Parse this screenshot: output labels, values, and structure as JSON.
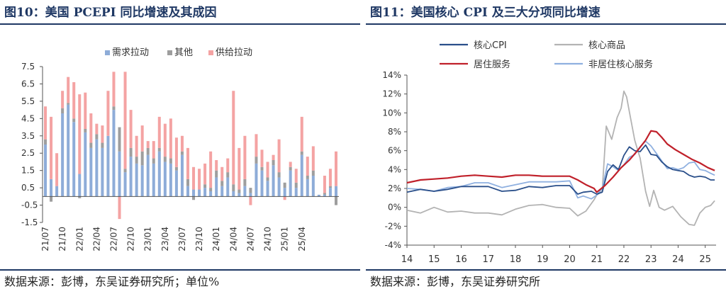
{
  "charts": [
    {
      "title": "图10：美国 PCEPI 同比增速及其成因",
      "source": "数据来源：彭博，东吴证券研究所；单位%"
    },
    {
      "title": "图11：美国核心 CPI 及三大分项同比增速",
      "source": "数据来源：彭博，东吴证券研究所"
    }
  ],
  "colors": {
    "demand": "#8eacd8",
    "other": "#9e9e9e",
    "supply": "#f4a3a3",
    "core_cpi": "#2a4f8a",
    "core_goods": "#b3b3b3",
    "shelter": "#c0202a",
    "core_services_ex_shelter": "#8fb0e0"
  },
  "chart_data": [
    {
      "type": "bar",
      "stacked": true,
      "title": "图10：美国 PCEPI 同比增速及其成因",
      "ylim": [
        -1.5,
        7.5
      ],
      "yticks": [
        "7.5",
        "6.5",
        "5.5",
        "4.5",
        "3.5",
        "2.5",
        "1.5",
        "0.5",
        "-0.5",
        "-1.5"
      ],
      "ytick_values": [
        7.5,
        6.5,
        5.5,
        4.5,
        3.5,
        2.5,
        1.5,
        0.5,
        -0.5,
        -1.5
      ],
      "xtick_labels": [
        "21/07",
        "21/10",
        "22/01",
        "22/04",
        "22/07",
        "22/10",
        "23/01",
        "23/04",
        "23/07",
        "23/10",
        "24/01",
        "24/04",
        "24/07",
        "24/10",
        "25/01",
        "25/04"
      ],
      "legend": [
        "需求拉动",
        "其他",
        "供给拉动"
      ],
      "legend_position": "top-center",
      "series": [
        {
          "name": "需求拉动",
          "values": [
            3.0,
            1.0,
            0.6,
            4.8,
            5.3,
            4.3,
            1.3,
            3.7,
            2.8,
            3.3,
            2.8,
            3.5,
            5.0,
            2.6,
            1.4,
            2.3,
            1.9,
            1.8,
            2.4,
            1.9,
            2.6,
            2.0,
            1.9,
            1.5,
            2.4,
            0.6,
            0.4,
            0.4,
            0.5,
            0.3,
            1.1,
            0.6,
            1.1,
            0.3,
            0.2,
            0.6,
            0.2,
            1.9,
            1.5,
            0.9,
            1.8,
            1.1,
            0.5,
            1.5,
            0.5,
            2.4,
            1.0,
            1.2,
            0.1,
            0.1,
            0.5,
            0.6
          ]
        },
        {
          "name": "其他",
          "values": [
            0.3,
            -0.3,
            0.0,
            0.3,
            0.1,
            0.2,
            -0.1,
            0.2,
            0.3,
            0.3,
            0.3,
            0.0,
            0.2,
            1.4,
            0.2,
            0.5,
            0.4,
            0.8,
            0.4,
            0.3,
            0.2,
            0.3,
            0.3,
            0.2,
            0.2,
            0.4,
            -0.2,
            0.0,
            0.2,
            0.2,
            0.4,
            0.3,
            0.3,
            0.4,
            0.2,
            0.4,
            0.3,
            0.4,
            0.2,
            0.2,
            0.3,
            0.3,
            0.3,
            0.2,
            0.3,
            0.2,
            0.2,
            0.3,
            0.0,
            0.1,
            0.1,
            -0.5
          ]
        },
        {
          "name": "供给拉动",
          "values": [
            1.9,
            3.6,
            1.9,
            1.0,
            1.5,
            2.1,
            4.6,
            2.1,
            1.7,
            0.6,
            1.0,
            2.6,
            2.0,
            -1.3,
            5.6,
            2.2,
            1.2,
            1.5,
            0.4,
            1.0,
            1.8,
            1.9,
            2.3,
            1.7,
            0.9,
            1.8,
            1.3,
            1.2,
            1.2,
            2.1,
            0.6,
            0.8,
            0.8,
            5.4,
            2.4,
            2.5,
            -0.5,
            1.3,
            1.0,
            0.9,
            0.3,
            1.9,
            -0.2,
            0.3,
            0.8,
            2.0,
            1.1,
            1.4,
            0.0,
            1.0,
            1.0,
            2.0
          ]
        }
      ]
    },
    {
      "type": "line",
      "title": "图11：美国核心 CPI 及三大分项同比增速",
      "xlim": [
        14,
        25.4
      ],
      "ylim": [
        -4,
        14
      ],
      "x_ticks": [
        14,
        15,
        16,
        17,
        18,
        19,
        20,
        21,
        22,
        23,
        24,
        25
      ],
      "x_tick_labels": [
        "14",
        "15",
        "16",
        "17",
        "18",
        "19",
        "20",
        "21",
        "22",
        "23",
        "24",
        "25"
      ],
      "y_ticks": [
        14,
        12,
        10,
        8,
        6,
        4,
        2,
        0,
        -2,
        -4
      ],
      "y_tick_labels": [
        "14%",
        "12%",
        "10%",
        "8%",
        "6%",
        "4%",
        "2%",
        "0%",
        "-2%",
        "-4%"
      ],
      "legend": [
        "核心CPI",
        "核心商品",
        "居住服务",
        "非居住核心服务"
      ],
      "legend_position": "top",
      "series": [
        {
          "name": "核心CPI",
          "x": [
            14.0,
            14.5,
            15.0,
            15.5,
            16.0,
            16.5,
            17.0,
            17.5,
            18.0,
            18.5,
            19.0,
            19.5,
            20.0,
            20.3,
            20.5,
            20.8,
            21.0,
            21.2,
            21.4,
            21.6,
            21.8,
            22.0,
            22.2,
            22.4,
            22.6,
            22.8,
            23.0,
            23.2,
            23.4,
            23.6,
            23.8,
            24.0,
            24.2,
            24.4,
            24.6,
            24.8,
            25.0,
            25.2,
            25.35
          ],
          "y": [
            1.6,
            1.9,
            1.7,
            1.9,
            2.2,
            2.2,
            2.2,
            1.7,
            1.8,
            2.2,
            2.1,
            2.3,
            2.3,
            1.4,
            1.6,
            1.7,
            1.4,
            1.6,
            3.8,
            4.5,
            4.0,
            5.5,
            6.4,
            6.0,
            5.9,
            6.6,
            5.6,
            5.5,
            4.8,
            4.3,
            4.0,
            3.9,
            3.8,
            3.4,
            3.2,
            3.3,
            3.2,
            2.9,
            2.9
          ]
        },
        {
          "name": "核心商品",
          "x": [
            14.0,
            14.5,
            15.0,
            15.5,
            16.0,
            16.5,
            17.0,
            17.5,
            18.0,
            18.5,
            19.0,
            19.5,
            20.0,
            20.3,
            20.6,
            20.9,
            21.0,
            21.2,
            21.35,
            21.55,
            21.75,
            21.9,
            22.0,
            22.1,
            22.25,
            22.4,
            22.6,
            22.8,
            22.95,
            23.1,
            23.3,
            23.5,
            23.8,
            24.1,
            24.4,
            24.6,
            24.8,
            25.0,
            25.2,
            25.35
          ],
          "y": [
            -0.3,
            -0.6,
            0.0,
            -0.5,
            -0.4,
            -0.6,
            -0.6,
            -0.8,
            -0.2,
            0.2,
            0.3,
            0.0,
            -0.1,
            -0.9,
            -0.4,
            0.8,
            1.3,
            1.7,
            8.6,
            7.2,
            9.5,
            10.5,
            12.3,
            11.7,
            9.4,
            7.1,
            5.2,
            1.7,
            0.1,
            1.8,
            0.0,
            -0.3,
            0.1,
            -1.0,
            -1.8,
            -1.9,
            -0.6,
            0.0,
            0.2,
            0.7
          ]
        },
        {
          "name": "居住服务",
          "x": [
            14.0,
            14.5,
            15.0,
            15.5,
            16.0,
            16.5,
            17.0,
            17.5,
            18.0,
            18.5,
            19.0,
            19.5,
            20.0,
            20.3,
            20.6,
            20.9,
            21.0,
            21.3,
            21.6,
            21.9,
            22.2,
            22.5,
            22.8,
            23.0,
            23.2,
            23.4,
            23.6,
            23.9,
            24.2,
            24.5,
            24.8,
            25.1,
            25.35
          ],
          "y": [
            2.6,
            2.9,
            3.0,
            3.1,
            3.3,
            3.4,
            3.3,
            3.2,
            3.4,
            3.4,
            3.3,
            3.3,
            3.3,
            2.9,
            2.4,
            2.0,
            1.6,
            2.3,
            3.2,
            4.2,
            5.0,
            6.0,
            7.1,
            8.1,
            8.0,
            7.4,
            6.7,
            6.1,
            5.6,
            5.1,
            4.7,
            4.2,
            3.9
          ]
        },
        {
          "name": "非居住核心服务",
          "x": [
            14.0,
            14.5,
            15.0,
            15.5,
            16.0,
            16.5,
            17.0,
            17.5,
            18.0,
            18.5,
            19.0,
            19.5,
            20.0,
            20.3,
            20.5,
            20.8,
            21.0,
            21.2,
            21.4,
            21.6,
            21.8,
            22.0,
            22.2,
            22.4,
            22.6,
            22.8,
            23.0,
            23.2,
            23.4,
            23.6,
            23.8,
            24.0,
            24.2,
            24.4,
            24.6,
            24.8,
            25.0,
            25.2,
            25.35
          ],
          "y": [
            2.0,
            1.9,
            1.7,
            2.1,
            2.2,
            2.6,
            2.6,
            2.1,
            2.4,
            2.7,
            2.7,
            2.7,
            2.8,
            1.0,
            1.2,
            0.9,
            1.3,
            2.0,
            4.6,
            4.3,
            3.9,
            4.5,
            5.3,
            5.6,
            6.4,
            7.0,
            6.5,
            5.7,
            4.9,
            4.1,
            4.2,
            4.0,
            4.2,
            4.7,
            4.8,
            4.0,
            3.9,
            3.6,
            3.4
          ]
        }
      ]
    }
  ]
}
